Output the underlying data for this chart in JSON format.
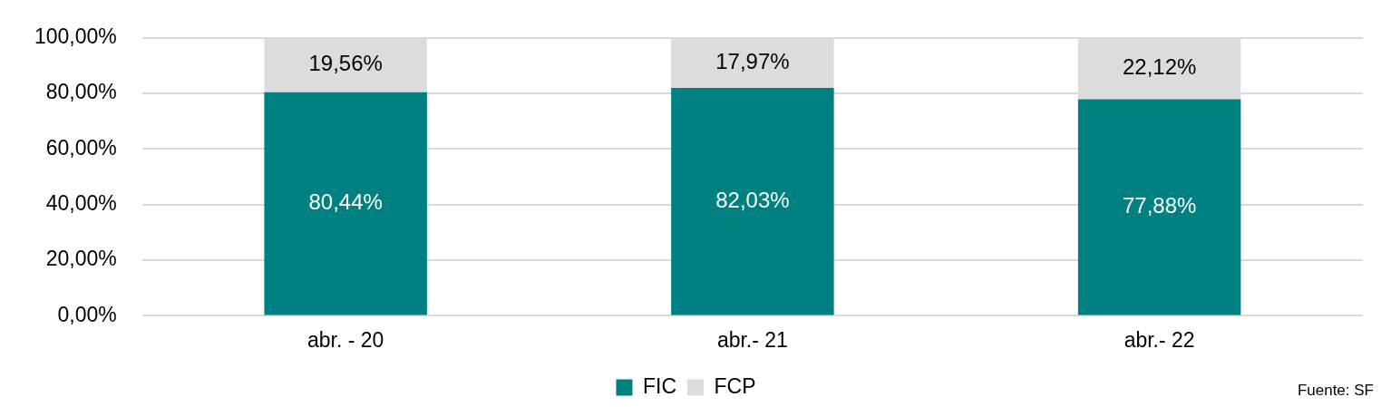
{
  "chart_data": {
    "type": "bar",
    "stacked": true,
    "categories": [
      "abr. - 20",
      "abr.- 21",
      "abr.- 22"
    ],
    "series": [
      {
        "name": "FIC",
        "color": "#008080",
        "values": [
          80.44,
          82.03,
          77.88
        ],
        "value_labels": [
          "80,44%",
          "82,03%",
          "77,88%"
        ]
      },
      {
        "name": "FCP",
        "color": "#dcdcdc",
        "values": [
          19.56,
          17.97,
          22.12
        ],
        "value_labels": [
          "19,56%",
          "17,97%",
          "22,12%"
        ]
      }
    ],
    "ylim": [
      0,
      100
    ],
    "yticks": [
      {
        "value": 0,
        "label": "0,00%"
      },
      {
        "value": 20,
        "label": "20,00%"
      },
      {
        "value": 40,
        "label": "40,00%"
      },
      {
        "value": 60,
        "label": "60,00%"
      },
      {
        "value": 80,
        "label": "80,00%"
      },
      {
        "value": 100,
        "label": "100,00%"
      }
    ],
    "grid": "y",
    "legend": "bottom",
    "annotations": [
      "Fuente: SF"
    ]
  }
}
